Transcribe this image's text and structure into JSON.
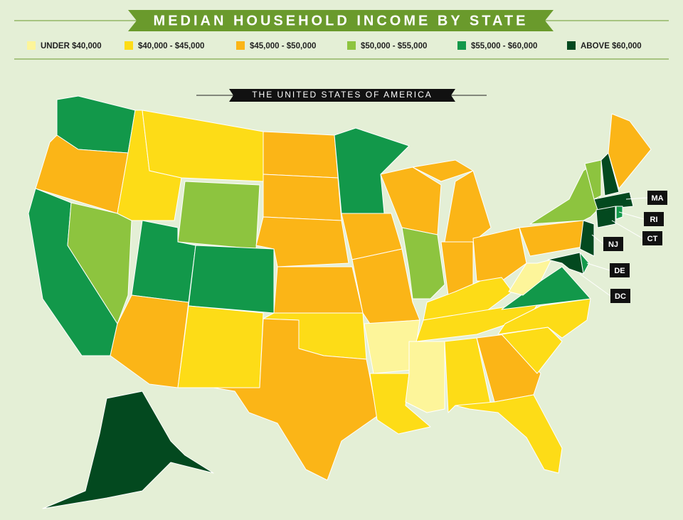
{
  "title": "MEDIAN HOUSEHOLD INCOME BY STATE",
  "legend": [
    {
      "label": "UNDER $40,000",
      "color": "#fdf59a"
    },
    {
      "label": "$40,000 - $45,000",
      "color": "#fddc17"
    },
    {
      "label": "$45,000 - $50,000",
      "color": "#fbb517"
    },
    {
      "label": "$50,000 - $55,000",
      "color": "#8dc43f"
    },
    {
      "label": "$55,000 - $60,000",
      "color": "#12984a"
    },
    {
      "label": "ABOVE $60,000",
      "color": "#03491f"
    }
  ],
  "subtitle": "THE UNITED STATES OF AMERICA",
  "callouts": [
    "MA",
    "RI",
    "CT",
    "NJ",
    "DE",
    "DC"
  ]
}
